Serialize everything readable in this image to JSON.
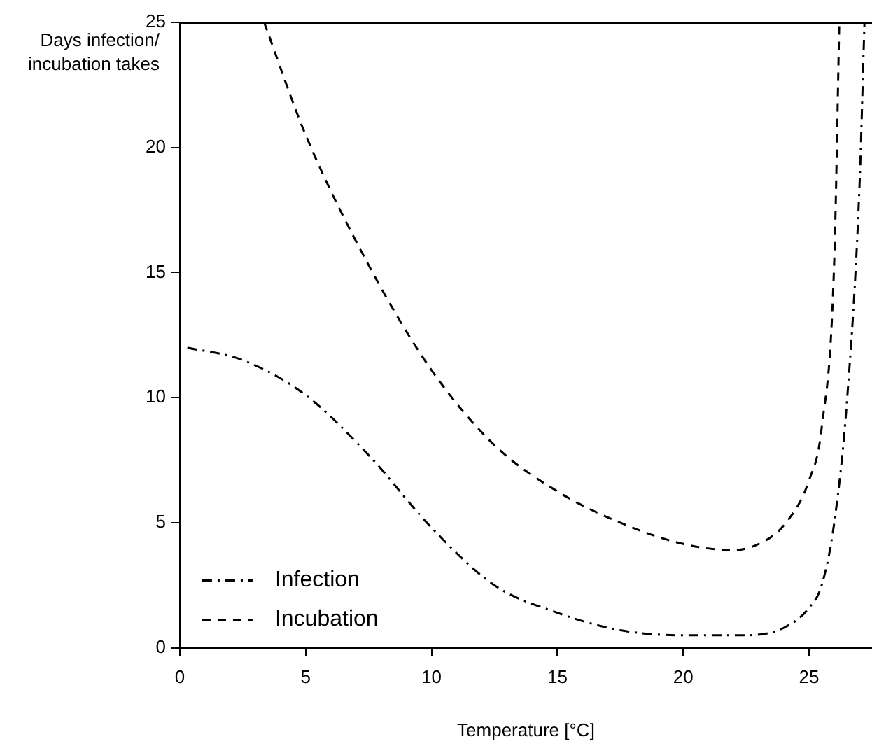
{
  "chart_data": {
    "type": "line",
    "xlabel": "Temperature [°C]",
    "ylabel": "Days infection/ incubation takes",
    "xlim": [
      0,
      27.5
    ],
    "xticks": [
      0,
      5,
      10,
      15,
      20,
      25
    ],
    "ylim": [
      0,
      25
    ],
    "yticks": [
      0,
      5,
      10,
      15,
      20,
      25
    ],
    "grid": false,
    "legend": "bottom left",
    "marker": "none",
    "series": [
      {
        "name": "Infection",
        "color": "#000000",
        "line_style": "dashdot",
        "x": [
          0.3,
          2.5,
          5,
          7.5,
          10,
          12.5,
          15,
          17.5,
          20,
          22.5,
          24,
          25,
          25.5,
          26,
          26.5,
          27,
          27.2
        ],
        "values": [
          12.0,
          11.5,
          10.1,
          7.7,
          4.8,
          2.5,
          1.4,
          0.7,
          0.5,
          0.5,
          0.8,
          1.6,
          2.5,
          5.0,
          9.8,
          18.4,
          25
        ]
      },
      {
        "name": "Incubation",
        "color": "#000000",
        "line_style": "dashed",
        "x": [
          3.35,
          5,
          7.5,
          10,
          12.5,
          15,
          17.5,
          20,
          22,
          23,
          24,
          25,
          25.5,
          26,
          26.2
        ],
        "values": [
          25,
          20.5,
          15.3,
          11.1,
          8.1,
          6.25,
          5.0,
          4.15,
          3.9,
          4.15,
          4.9,
          6.7,
          8.8,
          15.5,
          25
        ]
      }
    ]
  }
}
